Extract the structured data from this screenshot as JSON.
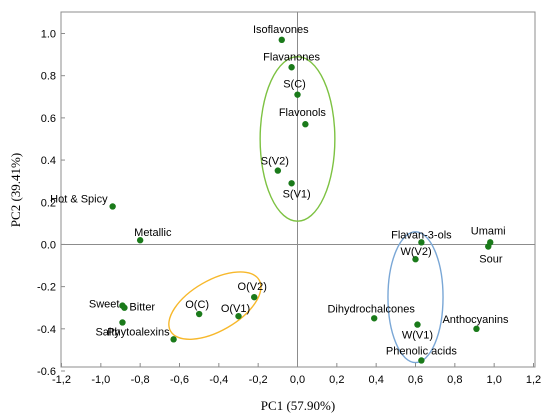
{
  "chart_data": {
    "type": "scatter",
    "xlabel": "PC1 (57.90%)",
    "ylabel": "PC2 (39.41%)",
    "xlim": [
      -1.2,
      1.2
    ],
    "ylim": [
      -0.6,
      1.1
    ],
    "xticks": [
      "-1,2",
      "-1,0",
      "-0,8",
      "-0,6",
      "-0,4",
      "-0,2",
      "0,0",
      "0,2",
      "0,4",
      "0,6",
      "0,8",
      "1,0",
      "1,2"
    ],
    "yticks": [
      "-0.6",
      "-0.4",
      "-0.2",
      "0.0",
      "0.2",
      "0.4",
      "0.6",
      "0.8",
      "1.0"
    ],
    "grid": false,
    "point_color": "#1a7a1a",
    "points": [
      {
        "label": "Isoflavones",
        "x": -0.08,
        "y": 0.97
      },
      {
        "label": "Flavanones",
        "x": -0.03,
        "y": 0.84
      },
      {
        "label": "S(C)",
        "x": 0.0,
        "y": 0.71
      },
      {
        "label": "Flavonols",
        "x": 0.04,
        "y": 0.57
      },
      {
        "label": "S(V2)",
        "x": -0.1,
        "y": 0.35
      },
      {
        "label": "S(V1)",
        "x": -0.03,
        "y": 0.29
      },
      {
        "label": "Hot & Spicy",
        "x": -0.94,
        "y": 0.18
      },
      {
        "label": "Metallic",
        "x": -0.8,
        "y": 0.02
      },
      {
        "label": "Umami",
        "x": 0.98,
        "y": 0.01
      },
      {
        "label": "Sour",
        "x": 0.97,
        "y": -0.01
      },
      {
        "label": "Flavan-3-ols",
        "x": 0.63,
        "y": 0.01
      },
      {
        "label": "W(V2)",
        "x": 0.6,
        "y": -0.07
      },
      {
        "label": "O(V2)",
        "x": -0.22,
        "y": -0.25
      },
      {
        "label": "Sweet",
        "x": -0.89,
        "y": -0.29
      },
      {
        "label": "Bitter",
        "x": -0.88,
        "y": -0.3
      },
      {
        "label": "O(C)",
        "x": -0.5,
        "y": -0.33
      },
      {
        "label": "O(V1)",
        "x": -0.3,
        "y": -0.34
      },
      {
        "label": "Dihydrochalcones",
        "x": 0.39,
        "y": -0.35
      },
      {
        "label": "Salty",
        "x": -0.89,
        "y": -0.37
      },
      {
        "label": "W(V1)",
        "x": 0.61,
        "y": -0.38
      },
      {
        "label": "Anthocyanins",
        "x": 0.91,
        "y": -0.4
      },
      {
        "label": "Phytoalexins",
        "x": -0.63,
        "y": -0.45
      },
      {
        "label": "Phenolic acids",
        "x": 0.63,
        "y": -0.55
      }
    ],
    "groups": [
      {
        "color": "#7dc242",
        "center": [
          0.0,
          0.5
        ],
        "radius": [
          0.19,
          0.39
        ]
      },
      {
        "color": "#f7b82b",
        "center": [
          -0.42,
          -0.29
        ],
        "radius": [
          0.26,
          0.12
        ],
        "rotation_deg": -30
      },
      {
        "color": "#7aa7d6",
        "center": [
          0.6,
          -0.25
        ],
        "radius": [
          0.14,
          0.31
        ]
      }
    ]
  }
}
